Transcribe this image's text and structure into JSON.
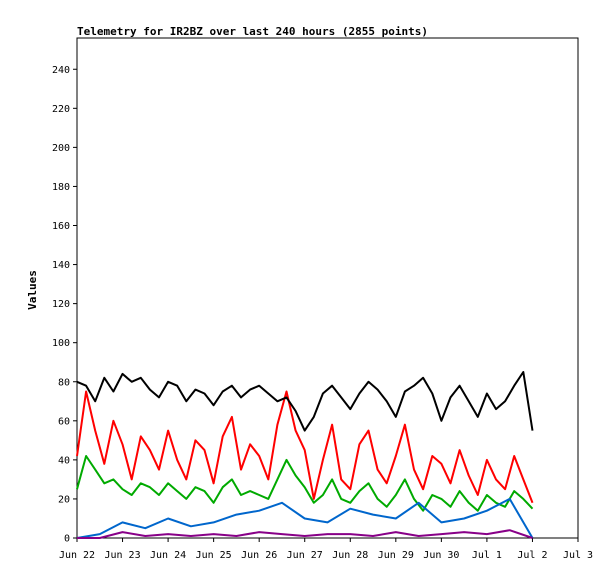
{
  "chart_data": {
    "type": "line",
    "title": "Telemetry for IR2BZ over last 240 hours (2855 points)",
    "ylabel": "Values",
    "xlabel": "",
    "ylim": [
      0,
      256
    ],
    "xlim_days": [
      "2024-06-22",
      "2024-07-03"
    ],
    "x_tick_labels": [
      "Jun 22",
      "Jun 23",
      "Jun 24",
      "Jun 25",
      "Jun 26",
      "Jun 27",
      "Jun 28",
      "Jun 29",
      "Jun 30",
      "Jul 1",
      "Jul 2",
      "Jul 3"
    ],
    "y_ticks": [
      0,
      20,
      40,
      60,
      80,
      100,
      120,
      140,
      160,
      180,
      200,
      220,
      240
    ],
    "grid": false,
    "legend": "none",
    "x_unit": "day offset from Jun 22 00:00",
    "series": [
      {
        "color": "#ff0000",
        "x": [
          0,
          0.2,
          0.4,
          0.6,
          0.8,
          1.0,
          1.2,
          1.4,
          1.6,
          1.8,
          2.0,
          2.2,
          2.4,
          2.6,
          2.8,
          3.0,
          3.2,
          3.4,
          3.6,
          3.8,
          4.0,
          4.2,
          4.4,
          4.6,
          4.8,
          5.0,
          5.2,
          5.4,
          5.6,
          5.8,
          6.0,
          6.2,
          6.4,
          6.6,
          6.8,
          7.0,
          7.2,
          7.4,
          7.6,
          7.8,
          8.0,
          8.2,
          8.4,
          8.6,
          8.8,
          9.0,
          9.2,
          9.4,
          9.6,
          9.8,
          10.0
        ],
        "values": [
          42,
          75,
          55,
          38,
          60,
          48,
          30,
          52,
          45,
          35,
          55,
          40,
          30,
          50,
          45,
          28,
          52,
          62,
          35,
          48,
          42,
          30,
          58,
          75,
          55,
          45,
          20,
          40,
          58,
          30,
          25,
          48,
          55,
          35,
          28,
          42,
          58,
          35,
          25,
          42,
          38,
          28,
          45,
          32,
          22,
          40,
          30,
          25,
          42,
          30,
          18
        ]
      },
      {
        "color": "#00aa00",
        "x": [
          0,
          0.2,
          0.4,
          0.6,
          0.8,
          1.0,
          1.2,
          1.4,
          1.6,
          1.8,
          2.0,
          2.2,
          2.4,
          2.6,
          2.8,
          3.0,
          3.2,
          3.4,
          3.6,
          3.8,
          4.0,
          4.2,
          4.4,
          4.6,
          4.8,
          5.0,
          5.2,
          5.4,
          5.6,
          5.8,
          6.0,
          6.2,
          6.4,
          6.6,
          6.8,
          7.0,
          7.2,
          7.4,
          7.6,
          7.8,
          8.0,
          8.2,
          8.4,
          8.6,
          8.8,
          9.0,
          9.2,
          9.4,
          9.6,
          9.8,
          10.0
        ],
        "values": [
          25,
          42,
          35,
          28,
          30,
          25,
          22,
          28,
          26,
          22,
          28,
          24,
          20,
          26,
          24,
          18,
          26,
          30,
          22,
          24,
          22,
          20,
          30,
          40,
          32,
          26,
          18,
          22,
          30,
          20,
          18,
          24,
          28,
          20,
          16,
          22,
          30,
          20,
          14,
          22,
          20,
          16,
          24,
          18,
          14,
          22,
          18,
          16,
          24,
          20,
          15
        ]
      },
      {
        "color": "#000000",
        "x": [
          0,
          0.2,
          0.4,
          0.6,
          0.8,
          1.0,
          1.2,
          1.4,
          1.6,
          1.8,
          2.0,
          2.2,
          2.4,
          2.6,
          2.8,
          3.0,
          3.2,
          3.4,
          3.6,
          3.8,
          4.0,
          4.2,
          4.4,
          4.6,
          4.8,
          5.0,
          5.2,
          5.4,
          5.6,
          5.8,
          6.0,
          6.2,
          6.4,
          6.6,
          6.8,
          7.0,
          7.2,
          7.4,
          7.6,
          7.8,
          8.0,
          8.2,
          8.4,
          8.6,
          8.8,
          9.0,
          9.2,
          9.4,
          9.6,
          9.8,
          10.0
        ],
        "values": [
          80,
          78,
          70,
          82,
          75,
          84,
          80,
          82,
          76,
          72,
          80,
          78,
          70,
          76,
          74,
          68,
          75,
          78,
          72,
          76,
          78,
          74,
          70,
          72,
          65,
          55,
          62,
          74,
          78,
          72,
          66,
          74,
          80,
          76,
          70,
          62,
          75,
          78,
          82,
          74,
          60,
          72,
          78,
          70,
          62,
          74,
          66,
          70,
          78,
          85,
          55
        ]
      },
      {
        "color": "#0066cc",
        "x": [
          0,
          0.5,
          1.0,
          1.5,
          2.0,
          2.5,
          3.0,
          3.5,
          4.0,
          4.5,
          5.0,
          5.5,
          6.0,
          6.5,
          7.0,
          7.5,
          8.0,
          8.5,
          9.0,
          9.5,
          10.0
        ],
        "values": [
          0,
          2,
          8,
          5,
          10,
          6,
          8,
          12,
          14,
          18,
          10,
          8,
          15,
          12,
          10,
          18,
          8,
          10,
          14,
          20,
          0
        ]
      },
      {
        "color": "#880088",
        "x": [
          0,
          0.5,
          1.0,
          1.5,
          2.0,
          2.5,
          3.0,
          3.5,
          4.0,
          4.5,
          5.0,
          5.5,
          6.0,
          6.5,
          7.0,
          7.5,
          8.0,
          8.5,
          9.0,
          9.5,
          10.0
        ],
        "values": [
          0,
          0,
          3,
          1,
          2,
          1,
          2,
          1,
          3,
          2,
          1,
          2,
          2,
          1,
          3,
          1,
          2,
          3,
          2,
          4,
          0
        ]
      }
    ]
  }
}
